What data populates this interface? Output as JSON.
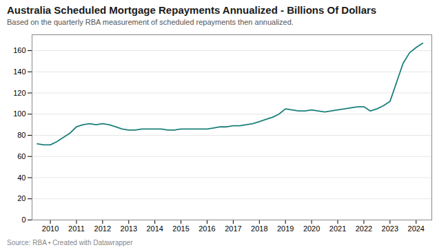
{
  "chart_data": {
    "type": "line",
    "title": "Australia Scheduled Mortgage Repayments Annualized - Billions Of Dollars",
    "subtitle": "Based on the quarterly RBA measurement of scheduled repayments then annualized.",
    "source": "Source: RBA • Created with Datawrapper",
    "color": "#1a7f7a",
    "grid": "y",
    "xlim": [
      2009.3,
      2024.6
    ],
    "xticks": [
      2010,
      2011,
      2012,
      2013,
      2014,
      2015,
      2016,
      2017,
      2018,
      2019,
      2020,
      2021,
      2022,
      2023,
      2024
    ],
    "ylim": [
      0,
      175
    ],
    "yticks": [
      0,
      20,
      40,
      60,
      80,
      100,
      120,
      140,
      160
    ],
    "x": [
      2009.5,
      2009.75,
      2010.0,
      2010.25,
      2010.5,
      2010.75,
      2011.0,
      2011.25,
      2011.5,
      2011.75,
      2012.0,
      2012.25,
      2012.5,
      2012.75,
      2013.0,
      2013.25,
      2013.5,
      2013.75,
      2014.0,
      2014.25,
      2014.5,
      2014.75,
      2015.0,
      2015.25,
      2015.5,
      2015.75,
      2016.0,
      2016.25,
      2016.5,
      2016.75,
      2017.0,
      2017.25,
      2017.5,
      2017.75,
      2018.0,
      2018.25,
      2018.5,
      2018.75,
      2019.0,
      2019.25,
      2019.5,
      2019.75,
      2020.0,
      2020.25,
      2020.5,
      2020.75,
      2021.0,
      2021.25,
      2021.5,
      2021.75,
      2022.0,
      2022.25,
      2022.5,
      2022.75,
      2023.0,
      2023.25,
      2023.5,
      2023.75,
      2024.0,
      2024.25
    ],
    "values": [
      72,
      71,
      71,
      74,
      78,
      82,
      88,
      90,
      91,
      90,
      91,
      90,
      88,
      86,
      85,
      85,
      86,
      86,
      86,
      86,
      85,
      85,
      86,
      86,
      86,
      86,
      86,
      87,
      88,
      88,
      89,
      89,
      90,
      91,
      93,
      95,
      97,
      100,
      105,
      104,
      103,
      103,
      104,
      103,
      102,
      103,
      104,
      105,
      106,
      107,
      107,
      103,
      105,
      108,
      112,
      130,
      148,
      158,
      163,
      167
    ]
  }
}
